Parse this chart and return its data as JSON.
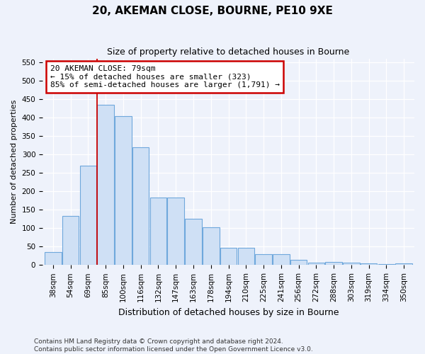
{
  "title": "20, AKEMAN CLOSE, BOURNE, PE10 9XE",
  "subtitle": "Size of property relative to detached houses in Bourne",
  "xlabel": "Distribution of detached houses by size in Bourne",
  "ylabel": "Number of detached properties",
  "categories": [
    "38sqm",
    "54sqm",
    "69sqm",
    "85sqm",
    "100sqm",
    "116sqm",
    "132sqm",
    "147sqm",
    "163sqm",
    "178sqm",
    "194sqm",
    "210sqm",
    "225sqm",
    "241sqm",
    "256sqm",
    "272sqm",
    "288sqm",
    "303sqm",
    "319sqm",
    "334sqm",
    "350sqm"
  ],
  "values": [
    35,
    133,
    270,
    435,
    405,
    320,
    183,
    183,
    125,
    103,
    46,
    46,
    29,
    29,
    15,
    7,
    9,
    7,
    4,
    3,
    5
  ],
  "bar_color": "#cfe0f5",
  "bar_edge_color": "#6fa8dc",
  "vline_x": 2.5,
  "vline_color": "#cc0000",
  "annotation_line1": "20 AKEMAN CLOSE: 79sqm",
  "annotation_line2": "← 15% of detached houses are smaller (323)",
  "annotation_line3": "85% of semi-detached houses are larger (1,791) →",
  "annotation_box_color": "#cc0000",
  "ylim": [
    0,
    560
  ],
  "yticks": [
    0,
    50,
    100,
    150,
    200,
    250,
    300,
    350,
    400,
    450,
    500,
    550
  ],
  "footer_line1": "Contains HM Land Registry data © Crown copyright and database right 2024.",
  "footer_line2": "Contains public sector information licensed under the Open Government Licence v3.0.",
  "bg_color": "#eef2fb",
  "plot_bg_color": "#eef2fb",
  "grid_color": "#ffffff",
  "title_fontsize": 11,
  "subtitle_fontsize": 9,
  "ylabel_fontsize": 8,
  "xlabel_fontsize": 9,
  "tick_fontsize": 7.5,
  "footer_fontsize": 6.5,
  "annotation_fontsize": 8
}
